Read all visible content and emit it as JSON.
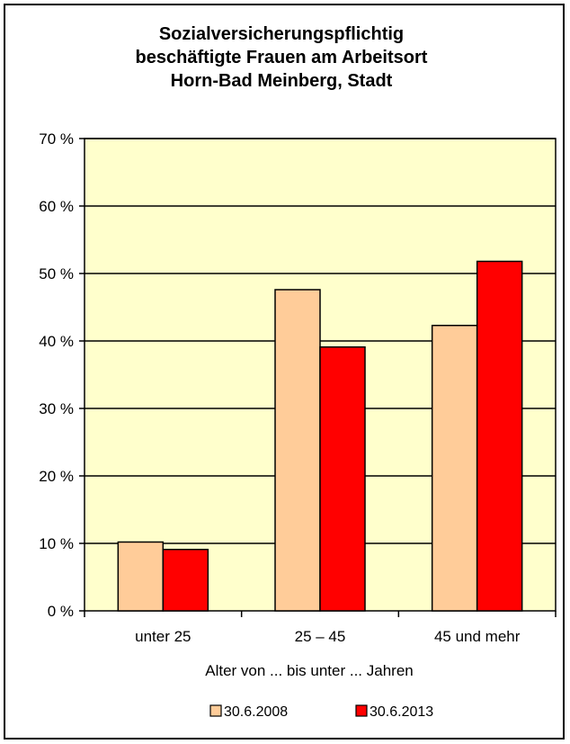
{
  "chart_data": {
    "type": "bar",
    "title_lines": [
      "Sozialversicherungspflichtig",
      "beschäftigte Frauen am Arbeitsort",
      "Horn-Bad Meinberg, Stadt"
    ],
    "categories": [
      "unter 25",
      "25 – 45",
      "45 und mehr"
    ],
    "series": [
      {
        "name": "30.6.2008",
        "values": [
          10.2,
          47.6,
          42.3
        ],
        "color": "#ffcc99"
      },
      {
        "name": "30.6.2013",
        "values": [
          9.1,
          39.1,
          51.8
        ],
        "color": "#ff0000"
      }
    ],
    "xlabel": "Alter von ... bis unter ... Jahren",
    "ylabel": "",
    "ylim": [
      0,
      70
    ],
    "yticks": [
      0,
      10,
      20,
      30,
      40,
      50,
      60,
      70
    ],
    "ytick_labels": [
      "0 %",
      "10 %",
      "20 %",
      "30 %",
      "40 %",
      "50 %",
      "60 %",
      "70 %"
    ],
    "grid": true,
    "legend_position": "bottom",
    "plot_background": "#ffffcc"
  }
}
